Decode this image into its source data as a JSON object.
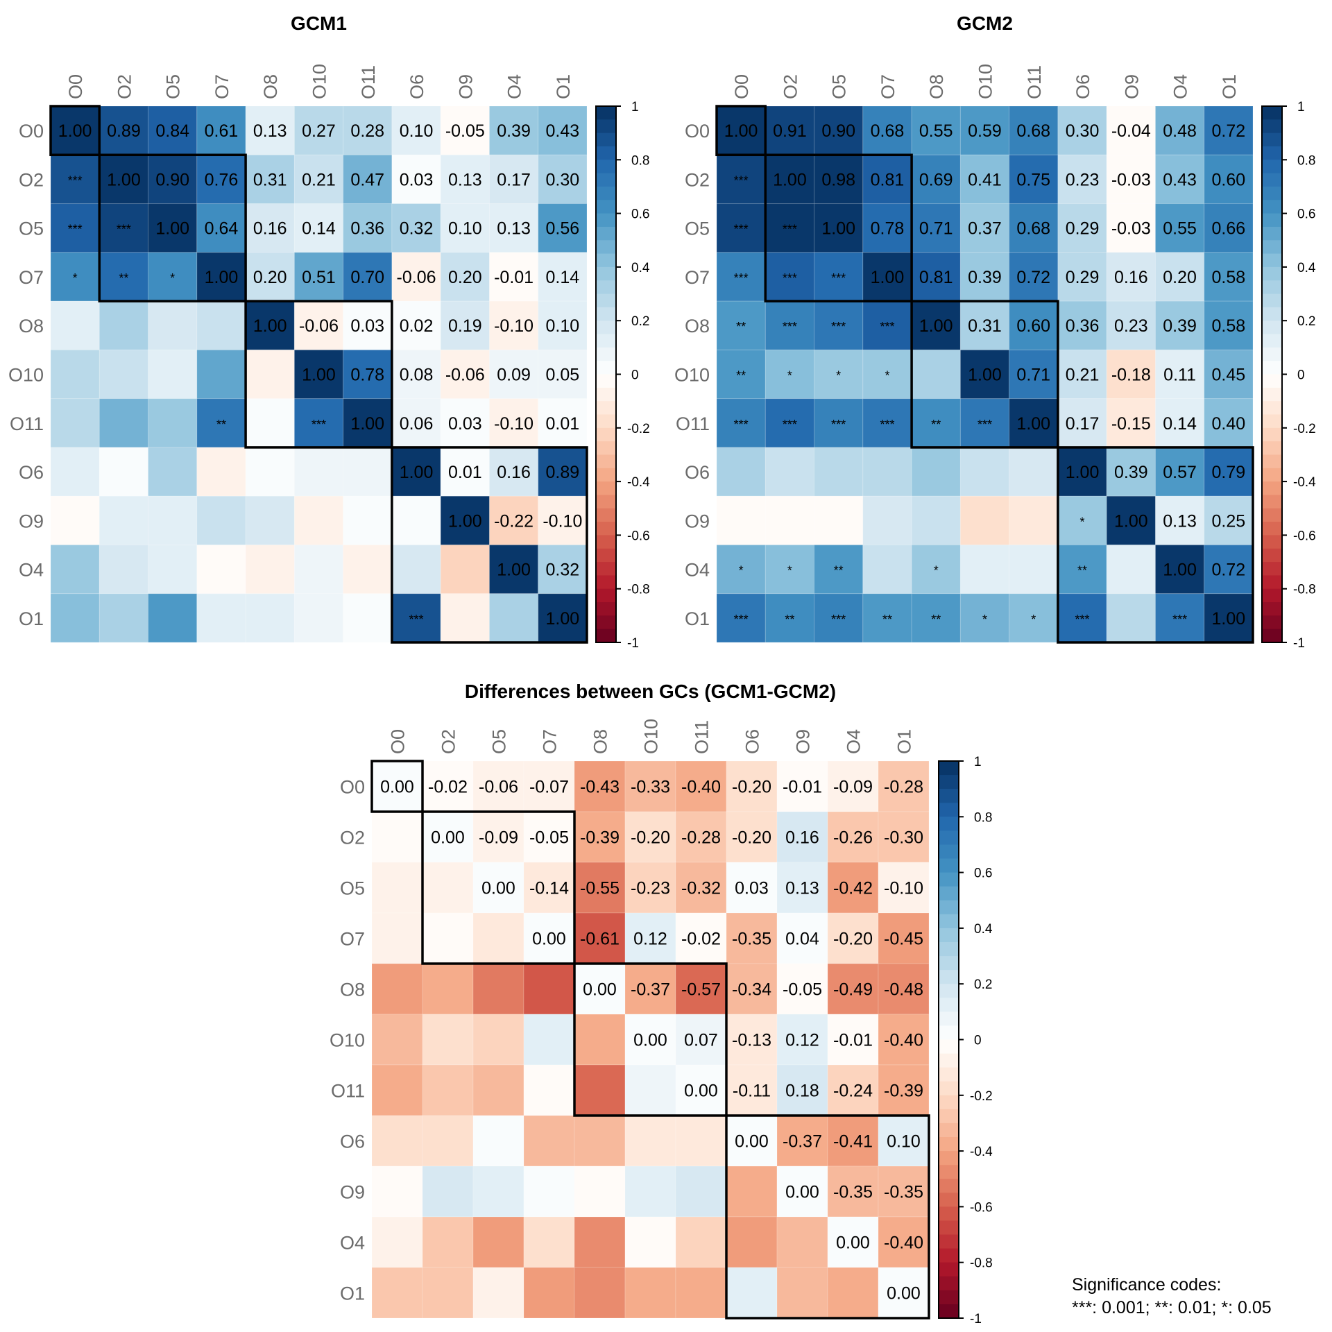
{
  "chart_data": [
    {
      "type": "heatmap",
      "title": "GCM1",
      "labels": [
        "O0",
        "O2",
        "O5",
        "O7",
        "O8",
        "O10",
        "O11",
        "O6",
        "O9",
        "O4",
        "O1"
      ],
      "values": [
        [
          1.0,
          0.89,
          0.84,
          0.61,
          0.13,
          0.27,
          0.28,
          0.1,
          -0.05,
          0.39,
          0.43
        ],
        [
          0.89,
          1.0,
          0.9,
          0.76,
          0.31,
          0.21,
          0.47,
          0.03,
          0.13,
          0.17,
          0.3
        ],
        [
          0.84,
          0.9,
          1.0,
          0.64,
          0.16,
          0.14,
          0.36,
          0.32,
          0.1,
          0.13,
          0.56
        ],
        [
          0.61,
          0.76,
          0.64,
          1.0,
          0.2,
          0.51,
          0.7,
          -0.06,
          0.2,
          -0.01,
          0.14
        ],
        [
          0.13,
          0.31,
          0.16,
          0.2,
          1.0,
          -0.06,
          0.03,
          0.02,
          0.19,
          -0.1,
          0.1
        ],
        [
          0.27,
          0.21,
          0.14,
          0.51,
          -0.06,
          1.0,
          0.78,
          0.08,
          -0.06,
          0.09,
          0.05
        ],
        [
          0.28,
          0.47,
          0.36,
          0.7,
          0.03,
          0.78,
          1.0,
          0.06,
          0.03,
          -0.1,
          0.01
        ],
        [
          0.1,
          0.03,
          0.32,
          -0.06,
          0.02,
          0.08,
          0.06,
          1.0,
          0.01,
          0.16,
          0.89
        ],
        [
          -0.05,
          0.13,
          0.1,
          0.2,
          0.19,
          -0.06,
          0.03,
          0.01,
          1.0,
          -0.22,
          -0.1
        ],
        [
          0.39,
          0.17,
          0.13,
          -0.01,
          -0.1,
          0.09,
          -0.1,
          0.16,
          -0.22,
          1.0,
          0.32
        ],
        [
          0.43,
          0.3,
          0.56,
          0.14,
          0.1,
          0.05,
          0.01,
          0.89,
          -0.1,
          0.32,
          1.0
        ]
      ],
      "significance_lower": [
        [
          "",
          "",
          "",
          "",
          "",
          "",
          "",
          "",
          "",
          "",
          ""
        ],
        [
          "***",
          "",
          "",
          "",
          "",
          "",
          "",
          "",
          "",
          "",
          ""
        ],
        [
          "***",
          "***",
          "",
          "",
          "",
          "",
          "",
          "",
          "",
          "",
          ""
        ],
        [
          "*",
          "**",
          "*",
          "",
          "",
          "",
          "",
          "",
          "",
          "",
          ""
        ],
        [
          "",
          "",
          "",
          "",
          "",
          "",
          "",
          "",
          "",
          "",
          ""
        ],
        [
          "",
          "",
          "",
          "",
          "",
          "",
          "",
          "",
          "",
          "",
          ""
        ],
        [
          "",
          "",
          "",
          "**",
          "",
          "***",
          "",
          "",
          "",
          "",
          ""
        ],
        [
          "",
          "",
          "",
          "",
          "",
          "",
          "",
          "",
          "",
          "",
          ""
        ],
        [
          "",
          "",
          "",
          "",
          "",
          "",
          "",
          "",
          "",
          "",
          ""
        ],
        [
          "",
          "",
          "",
          "",
          "",
          "",
          "",
          "",
          "",
          "",
          ""
        ],
        [
          "",
          "",
          "",
          "",
          "",
          "",
          "",
          "***",
          "",
          "",
          ""
        ]
      ],
      "blocks": [
        [
          0,
          0
        ],
        [
          1,
          3
        ],
        [
          4,
          6
        ],
        [
          7,
          10
        ]
      ],
      "colorbar": {
        "min": -1,
        "max": 1,
        "ticks": [
          "1",
          "0.8",
          "0.6",
          "0.4",
          "0.2",
          "0",
          "-0.2",
          "-0.4",
          "-0.6",
          "-0.8",
          "-1"
        ]
      }
    },
    {
      "type": "heatmap",
      "title": "GCM2",
      "labels": [
        "O0",
        "O2",
        "O5",
        "O7",
        "O8",
        "O10",
        "O11",
        "O6",
        "O9",
        "O4",
        "O1"
      ],
      "values": [
        [
          1.0,
          0.91,
          0.9,
          0.68,
          0.55,
          0.59,
          0.68,
          0.3,
          -0.04,
          0.48,
          0.72
        ],
        [
          0.91,
          1.0,
          0.98,
          0.81,
          0.69,
          0.41,
          0.75,
          0.23,
          -0.03,
          0.43,
          0.6
        ],
        [
          0.9,
          0.98,
          1.0,
          0.78,
          0.71,
          0.37,
          0.68,
          0.29,
          -0.03,
          0.55,
          0.66
        ],
        [
          0.68,
          0.81,
          0.78,
          1.0,
          0.81,
          0.39,
          0.72,
          0.29,
          0.16,
          0.2,
          0.58
        ],
        [
          0.55,
          0.69,
          0.71,
          0.81,
          1.0,
          0.31,
          0.6,
          0.36,
          0.23,
          0.39,
          0.58
        ],
        [
          0.59,
          0.41,
          0.37,
          0.39,
          0.31,
          1.0,
          0.71,
          0.21,
          -0.18,
          0.11,
          0.45
        ],
        [
          0.68,
          0.75,
          0.68,
          0.72,
          0.6,
          0.71,
          1.0,
          0.17,
          -0.15,
          0.14,
          0.4
        ],
        [
          0.3,
          0.23,
          0.29,
          0.29,
          0.36,
          0.21,
          0.17,
          1.0,
          0.39,
          0.57,
          0.79
        ],
        [
          -0.04,
          -0.03,
          -0.03,
          0.16,
          0.23,
          -0.18,
          -0.15,
          0.39,
          1.0,
          0.13,
          0.25
        ],
        [
          0.48,
          0.43,
          0.55,
          0.2,
          0.39,
          0.11,
          0.14,
          0.57,
          0.13,
          1.0,
          0.72
        ],
        [
          0.72,
          0.6,
          0.66,
          0.58,
          0.58,
          0.45,
          0.4,
          0.79,
          0.25,
          0.72,
          1.0
        ]
      ],
      "significance_lower": [
        [
          "",
          "",
          "",
          "",
          "",
          "",
          "",
          "",
          "",
          "",
          ""
        ],
        [
          "***",
          "",
          "",
          "",
          "",
          "",
          "",
          "",
          "",
          "",
          ""
        ],
        [
          "***",
          "***",
          "",
          "",
          "",
          "",
          "",
          "",
          "",
          "",
          ""
        ],
        [
          "***",
          "***",
          "***",
          "",
          "",
          "",
          "",
          "",
          "",
          "",
          ""
        ],
        [
          "**",
          "***",
          "***",
          "***",
          "",
          "",
          "",
          "",
          "",
          "",
          ""
        ],
        [
          "**",
          "*",
          "*",
          "*",
          "",
          "",
          "",
          "",
          "",
          "",
          ""
        ],
        [
          "***",
          "***",
          "***",
          "***",
          "**",
          "***",
          "",
          "",
          "",
          "",
          ""
        ],
        [
          "",
          "",
          "",
          "",
          "",
          "",
          "",
          "",
          "",
          "",
          ""
        ],
        [
          "",
          "",
          "",
          "",
          "",
          "",
          "",
          "*",
          "",
          "",
          ""
        ],
        [
          "*",
          "*",
          "**",
          "",
          "*",
          "",
          "",
          "**",
          "",
          "",
          ""
        ],
        [
          "***",
          "**",
          "***",
          "**",
          "**",
          "*",
          "*",
          "***",
          "",
          "***",
          ""
        ]
      ],
      "blocks": [
        [
          0,
          0
        ],
        [
          1,
          3
        ],
        [
          4,
          6
        ],
        [
          7,
          10
        ]
      ],
      "colorbar": {
        "min": -1,
        "max": 1,
        "ticks": [
          "1",
          "0.8",
          "0.6",
          "0.4",
          "0.2",
          "0",
          "-0.2",
          "-0.4",
          "-0.6",
          "-0.8",
          "-1"
        ]
      }
    },
    {
      "type": "heatmap",
      "title": "Differences between GCs (GCM1-GCM2)",
      "labels": [
        "O0",
        "O2",
        "O5",
        "O7",
        "O8",
        "O10",
        "O11",
        "O6",
        "O9",
        "O4",
        "O1"
      ],
      "values": [
        [
          0.0,
          -0.02,
          -0.06,
          -0.07,
          -0.43,
          -0.33,
          -0.4,
          -0.2,
          -0.01,
          -0.09,
          -0.28
        ],
        [
          -0.02,
          0.0,
          -0.09,
          -0.05,
          -0.39,
          -0.2,
          -0.28,
          -0.2,
          0.16,
          -0.26,
          -0.3
        ],
        [
          -0.06,
          -0.09,
          0.0,
          -0.14,
          -0.55,
          -0.23,
          -0.32,
          0.03,
          0.13,
          -0.42,
          -0.1
        ],
        [
          -0.07,
          -0.05,
          -0.14,
          0.0,
          -0.61,
          0.12,
          -0.02,
          -0.35,
          0.04,
          -0.2,
          -0.45
        ],
        [
          -0.43,
          -0.39,
          -0.55,
          -0.61,
          0.0,
          -0.37,
          -0.57,
          -0.34,
          -0.05,
          -0.49,
          -0.48
        ],
        [
          -0.33,
          -0.2,
          -0.23,
          0.12,
          -0.37,
          0.0,
          0.07,
          -0.13,
          0.12,
          -0.01,
          -0.4
        ],
        [
          -0.4,
          -0.28,
          -0.32,
          -0.02,
          -0.57,
          0.07,
          0.0,
          -0.11,
          0.18,
          -0.24,
          -0.39
        ],
        [
          -0.2,
          -0.2,
          0.03,
          -0.35,
          -0.34,
          -0.13,
          -0.11,
          0.0,
          -0.37,
          -0.41,
          0.1
        ],
        [
          -0.01,
          0.16,
          0.13,
          0.04,
          -0.05,
          0.12,
          0.18,
          -0.37,
          0.0,
          -0.35,
          -0.35
        ],
        [
          -0.09,
          -0.26,
          -0.42,
          -0.2,
          -0.49,
          -0.01,
          -0.24,
          -0.41,
          -0.35,
          0.0,
          -0.4
        ],
        [
          -0.28,
          -0.3,
          -0.1,
          -0.45,
          -0.48,
          -0.4,
          -0.39,
          0.1,
          -0.35,
          -0.4,
          0.0
        ]
      ],
      "blocks": [
        [
          0,
          0
        ],
        [
          1,
          3
        ],
        [
          4,
          6
        ],
        [
          7,
          10
        ]
      ],
      "colorbar": {
        "min": -1,
        "max": 1,
        "ticks": [
          "1",
          "0.8",
          "0.6",
          "0.4",
          "0.2",
          "0",
          "-0.2",
          "-0.4",
          "-0.6",
          "-0.8",
          "-1"
        ]
      }
    }
  ],
  "legend": {
    "heading": "Significance codes:",
    "codes": "***: 0.001;  **: 0.01;  *: 0.05"
  },
  "palette": {
    "negative_end": "#67001f",
    "neutral": "#ffffff",
    "positive_end": "#053061"
  }
}
